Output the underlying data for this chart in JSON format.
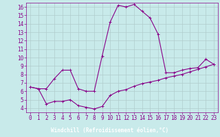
{
  "xlabel": "Windchill (Refroidissement éolien,°C)",
  "background_color": "#c8eaea",
  "grid_color": "#b0cccc",
  "line_color": "#880088",
  "xlabel_bg": "#660066",
  "xlabel_fg": "#ffffff",
  "xlim": [
    -0.5,
    23.5
  ],
  "ylim": [
    3.5,
    16.5
  ],
  "xticks": [
    0,
    1,
    2,
    3,
    4,
    5,
    6,
    7,
    8,
    9,
    10,
    11,
    12,
    13,
    14,
    15,
    16,
    17,
    18,
    19,
    20,
    21,
    22,
    23
  ],
  "yticks": [
    4,
    5,
    6,
    7,
    8,
    9,
    10,
    11,
    12,
    13,
    14,
    15,
    16
  ],
  "line1_x": [
    0,
    1,
    2,
    3,
    4,
    5,
    6,
    7,
    8,
    9,
    10,
    11,
    12,
    13,
    14,
    15,
    16,
    17,
    18,
    19,
    20,
    21,
    22,
    23
  ],
  "line1_y": [
    6.5,
    6.3,
    6.3,
    7.5,
    8.5,
    8.5,
    6.3,
    6.0,
    6.0,
    10.2,
    14.2,
    16.2,
    16.0,
    16.3,
    15.5,
    14.7,
    12.8,
    8.2,
    8.2,
    8.5,
    8.7,
    8.8,
    9.8,
    9.2
  ],
  "line2_x": [
    0,
    1,
    2,
    3,
    4,
    5,
    6,
    7,
    8,
    9,
    10,
    11,
    12,
    13,
    14,
    15,
    16,
    17,
    18,
    19,
    20,
    21,
    22,
    23
  ],
  "line2_y": [
    6.5,
    6.3,
    4.5,
    4.8,
    4.8,
    5.0,
    4.3,
    4.1,
    3.9,
    4.2,
    5.5,
    6.0,
    6.2,
    6.6,
    6.9,
    7.1,
    7.3,
    7.6,
    7.8,
    8.0,
    8.3,
    8.6,
    8.9,
    9.2
  ],
  "tick_fontsize": 5.5,
  "xlabel_fontsize": 5.5
}
